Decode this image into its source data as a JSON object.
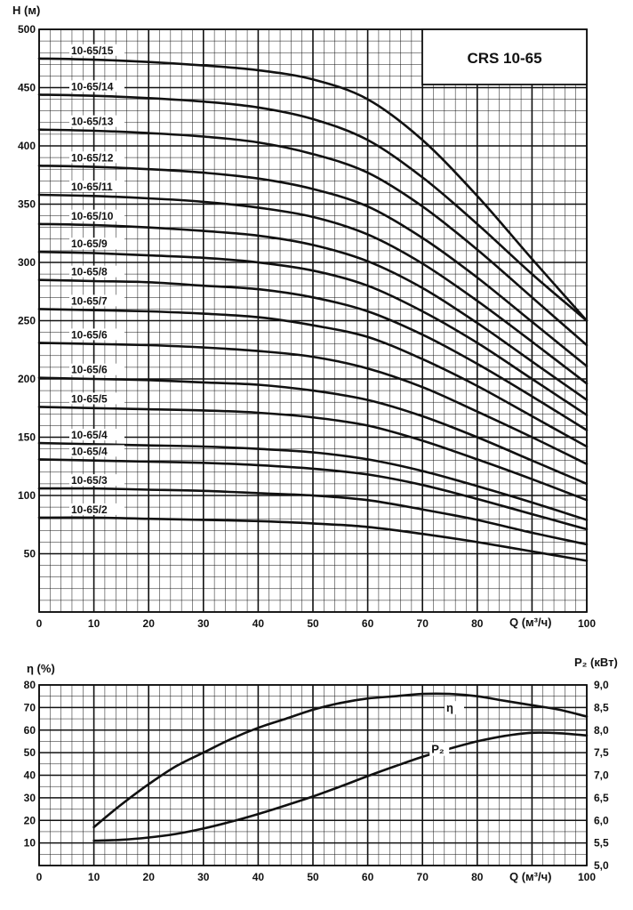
{
  "chart_data": [
    {
      "type": "line",
      "title": "",
      "model_label": "CRS 10-65",
      "ylabel": "H (м)",
      "xlabel": "Q (м³/ч)",
      "xlim": [
        0,
        100
      ],
      "ylim": [
        0,
        500
      ],
      "x_ticks": [
        "0",
        "10",
        "20",
        "30",
        "40",
        "50",
        "60",
        "70",
        "80",
        "100"
      ],
      "y_ticks": [
        "50",
        "100",
        "150",
        "200",
        "250",
        "300",
        "350",
        "400",
        "450",
        "500"
      ],
      "grid": true,
      "x": [
        0,
        10,
        20,
        30,
        40,
        50,
        60,
        70,
        80,
        90,
        100
      ],
      "series": [
        {
          "name": "10-65/15",
          "values": [
            475,
            474,
            472,
            469,
            465,
            457,
            440,
            405,
            357,
            303,
            250
          ]
        },
        {
          "name": "10-65/14",
          "values": [
            444,
            443,
            441,
            438,
            433,
            423,
            405,
            373,
            333,
            290,
            250
          ]
        },
        {
          "name": "10-65/13",
          "values": [
            414,
            413,
            411,
            408,
            403,
            393,
            377,
            348,
            311,
            270,
            229
          ]
        },
        {
          "name": "10-65/12",
          "values": [
            383,
            382,
            380,
            377,
            372,
            363,
            348,
            321,
            287,
            249,
            211
          ]
        },
        {
          "name": "10-65/11",
          "values": [
            358,
            357,
            355,
            352,
            347,
            339,
            324,
            299,
            267,
            232,
            196
          ]
        },
        {
          "name": "10-65/10",
          "values": [
            333,
            332,
            330,
            327,
            323,
            315,
            301,
            278,
            248,
            215,
            182
          ]
        },
        {
          "name": "10-65/9",
          "values": [
            309,
            308,
            306,
            304,
            300,
            293,
            280,
            258,
            231,
            200,
            169
          ]
        },
        {
          "name": "10-65/8",
          "values": [
            285,
            284,
            283,
            280,
            277,
            270,
            258,
            238,
            213,
            185,
            156
          ]
        },
        {
          "name": "10-65/7",
          "values": [
            260,
            259,
            258,
            256,
            253,
            246,
            236,
            217,
            194,
            168,
            142
          ]
        },
        {
          "name": "10-65/6",
          "values": [
            231,
            230,
            229,
            227,
            224,
            219,
            209,
            193,
            172,
            150,
            127
          ]
        },
        {
          "name": "10-65/6",
          "values": [
            201,
            200,
            199,
            197,
            195,
            190,
            182,
            168,
            150,
            130,
            110
          ]
        },
        {
          "name": "10-65/5",
          "values": [
            176,
            175,
            174,
            173,
            171,
            167,
            160,
            147,
            131,
            114,
            96
          ]
        },
        {
          "name": "10-65/4",
          "values": [
            145,
            144,
            143,
            142,
            140,
            137,
            131,
            121,
            108,
            94,
            79
          ]
        },
        {
          "name": "10-65/4",
          "values": [
            131,
            130,
            129,
            128,
            126,
            123,
            118,
            109,
            97,
            84,
            71
          ]
        },
        {
          "name": "10-65/3",
          "values": [
            106,
            106,
            105,
            104,
            102,
            100,
            96,
            88,
            79,
            68,
            58
          ]
        },
        {
          "name": "10-65/2",
          "values": [
            81,
            81,
            80,
            79,
            78,
            76,
            73,
            67,
            60,
            52,
            44
          ]
        }
      ]
    },
    {
      "type": "line",
      "title": "",
      "ylabel": "η (%)",
      "ylabel_right": "P₂ (кВт)",
      "xlabel": "Q (м³/ч)",
      "xlim": [
        0,
        100
      ],
      "ylim": [
        0,
        80
      ],
      "ylim_right": [
        5.0,
        9.0
      ],
      "x_ticks": [
        "0",
        "10",
        "20",
        "30",
        "40",
        "50",
        "60",
        "70",
        "80",
        "100"
      ],
      "y_ticks": [
        "10",
        "20",
        "30",
        "40",
        "50",
        "60",
        "70",
        "80"
      ],
      "y_ticks_right": [
        "5,0",
        "5,5",
        "6,0",
        "6,5",
        "7,0",
        "7,5",
        "8,0",
        "8,5",
        "9,0"
      ],
      "grid": true,
      "series": [
        {
          "name": "η",
          "axis": "left",
          "x": [
            10,
            15,
            20,
            25,
            30,
            35,
            40,
            45,
            50,
            55,
            60,
            65,
            70,
            75,
            80,
            85,
            90,
            95,
            100
          ],
          "values": [
            17,
            27,
            36,
            44,
            50,
            56,
            61,
            65,
            69,
            72,
            74,
            75,
            76,
            76,
            75,
            73,
            71,
            69,
            66
          ]
        },
        {
          "name": "P₂",
          "axis": "right",
          "x": [
            10,
            15,
            20,
            25,
            30,
            35,
            40,
            45,
            50,
            55,
            60,
            65,
            70,
            75,
            80,
            85,
            90,
            95,
            100
          ],
          "values": [
            5.55,
            5.57,
            5.62,
            5.7,
            5.82,
            5.97,
            6.14,
            6.33,
            6.53,
            6.75,
            6.98,
            7.2,
            7.41,
            7.59,
            7.75,
            7.87,
            7.94,
            7.93,
            7.88
          ]
        }
      ]
    }
  ]
}
